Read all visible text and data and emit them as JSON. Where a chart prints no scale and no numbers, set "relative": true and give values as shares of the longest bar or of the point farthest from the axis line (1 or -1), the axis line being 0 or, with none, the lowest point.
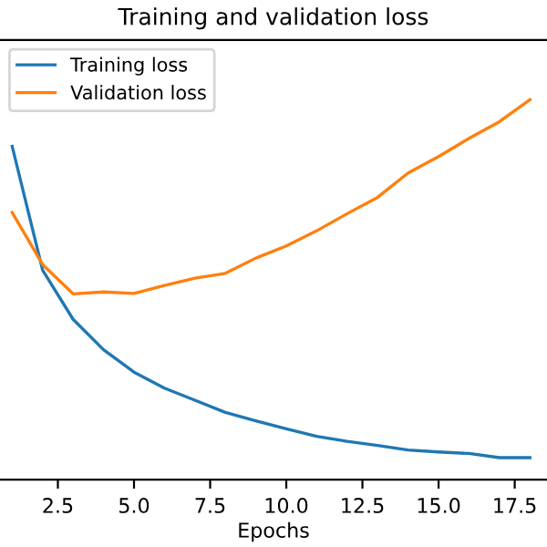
{
  "chart_data": {
    "type": "line",
    "title": "Training and validation loss",
    "xlabel": "Epochs",
    "x": [
      1,
      2,
      3,
      4,
      5,
      6,
      7,
      8,
      9,
      10,
      11,
      12,
      13,
      14,
      15,
      16,
      17,
      18
    ],
    "relative": true,
    "xlim": [
      0.6,
      18.56
    ],
    "xticks": [
      2.5,
      {
        "value": 5,
        "label": "5.0"
      },
      7.5,
      {
        "value": 10,
        "label": "10.0"
      },
      12.5,
      {
        "value": 15,
        "label": "15.0"
      },
      17.5
    ],
    "series": [
      {
        "name": "Training loss",
        "color": "#1f77b4",
        "values": [
          0.877,
          0.551,
          0.422,
          0.342,
          0.283,
          0.241,
          0.209,
          0.177,
          0.155,
          0.134,
          0.114,
          0.101,
          0.09,
          0.078,
          0.073,
          0.069,
          0.058,
          0.058
        ]
      },
      {
        "name": "Validation loss",
        "color": "#ff7f0e",
        "values": [
          0.703,
          0.566,
          0.489,
          0.494,
          0.49,
          0.511,
          0.53,
          0.543,
          0.583,
          0.615,
          0.655,
          0.7,
          0.743,
          0.807,
          0.85,
          0.898,
          0.942,
          1.0
        ]
      }
    ],
    "legend": "top left",
    "grid": false,
    "tick_labels": "x"
  }
}
